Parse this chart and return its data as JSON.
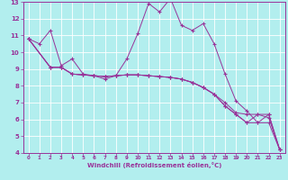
{
  "xlabel": "Windchill (Refroidissement éolien,°C)",
  "bg_color": "#b2eeee",
  "line_color": "#993399",
  "grid_color": "#ffffff",
  "xlim": [
    -0.5,
    23.5
  ],
  "ylim": [
    4,
    13
  ],
  "xticks": [
    0,
    1,
    2,
    3,
    4,
    5,
    6,
    7,
    8,
    9,
    10,
    11,
    12,
    13,
    14,
    15,
    16,
    17,
    18,
    19,
    20,
    21,
    22,
    23
  ],
  "yticks": [
    4,
    5,
    6,
    7,
    8,
    9,
    10,
    11,
    12,
    13
  ],
  "lines": [
    {
      "x": [
        0,
        1,
        2,
        3,
        4,
        5,
        6,
        7,
        8,
        9,
        10,
        11,
        12,
        13,
        14,
        15,
        16,
        17,
        18,
        19,
        20,
        21,
        22,
        23
      ],
      "y": [
        10.8,
        10.5,
        11.3,
        9.2,
        9.6,
        8.7,
        8.6,
        8.4,
        8.6,
        9.6,
        11.1,
        12.9,
        12.4,
        13.2,
        11.6,
        11.3,
        11.7,
        10.5,
        8.7,
        7.1,
        6.5,
        5.8,
        6.3,
        4.2
      ]
    },
    {
      "x": [
        0,
        2,
        3,
        4,
        5,
        6,
        7,
        8,
        9,
        10,
        11,
        12,
        13,
        14,
        15,
        16,
        17,
        18,
        19,
        20,
        21,
        22,
        23
      ],
      "y": [
        10.8,
        9.1,
        9.1,
        8.7,
        8.65,
        8.6,
        8.55,
        8.6,
        8.65,
        8.65,
        8.6,
        8.55,
        8.5,
        8.4,
        8.2,
        7.9,
        7.5,
        7.0,
        6.4,
        6.3,
        6.3,
        6.1,
        4.2
      ]
    },
    {
      "x": [
        0,
        2,
        3,
        4,
        5,
        6,
        7,
        8,
        9,
        10,
        11,
        12,
        13,
        14,
        15,
        16,
        17,
        18,
        19,
        20,
        21,
        22,
        23
      ],
      "y": [
        10.8,
        9.1,
        9.1,
        8.7,
        8.65,
        8.6,
        8.55,
        8.6,
        8.65,
        8.65,
        8.6,
        8.55,
        8.5,
        8.4,
        8.2,
        7.9,
        7.5,
        6.8,
        6.3,
        5.8,
        5.8,
        5.8,
        4.2
      ]
    },
    {
      "x": [
        0,
        2,
        3,
        4,
        5,
        6,
        7,
        8,
        9,
        10,
        11,
        12,
        13,
        14,
        15,
        16,
        17,
        18,
        19,
        20,
        21,
        22,
        23
      ],
      "y": [
        10.8,
        9.1,
        9.1,
        8.7,
        8.65,
        8.6,
        8.55,
        8.6,
        8.65,
        8.65,
        8.6,
        8.55,
        8.5,
        8.4,
        8.2,
        7.9,
        7.5,
        6.8,
        6.3,
        5.8,
        6.3,
        6.3,
        4.2
      ]
    }
  ]
}
